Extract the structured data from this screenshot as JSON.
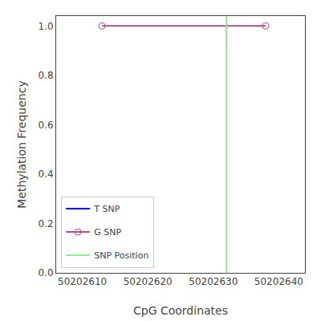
{
  "chart_data": {
    "type": "line",
    "xlabel": "CpG Coordinates",
    "ylabel": "Methylation Frequency",
    "xlim": [
      50202606,
      50202644
    ],
    "ylim": [
      0.0,
      1.04
    ],
    "xticks": [
      50202610,
      50202620,
      50202630,
      50202640
    ],
    "yticks": [
      {
        "value": 0.0,
        "label": "0.0"
      },
      0.2,
      0.4,
      0.6,
      0.8,
      {
        "value": 1.0,
        "label": "1.0"
      }
    ],
    "legend": "lower left",
    "grid": false,
    "series": [
      {
        "name": "T SNP",
        "color": "blue",
        "x": [],
        "values": []
      },
      {
        "name": "G SNP",
        "color": "#b05090",
        "marker": "circle-open",
        "x": [
          50202613,
          50202638
        ],
        "values": [
          1.0,
          1.0
        ]
      },
      {
        "name": "SNP Position",
        "type": "vline",
        "color": "#90ee90",
        "x": [
          50202632
        ]
      }
    ]
  }
}
